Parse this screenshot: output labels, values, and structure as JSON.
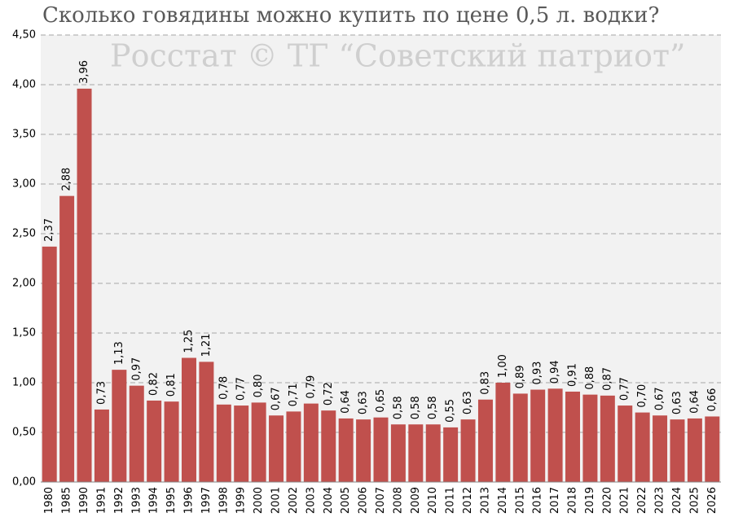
{
  "chart_data": {
    "type": "bar",
    "title": "Сколько говядины можно купить по цене 0,5 л. водки?",
    "subtitle": "Росстат © ТГ “Советский патриот”",
    "categories": [
      "1980",
      "1985",
      "1990",
      "1991",
      "1992",
      "1993",
      "1994",
      "1995",
      "1996",
      "1997",
      "1998",
      "1999",
      "2000",
      "2001",
      "2002",
      "2003",
      "2004",
      "2005",
      "2006",
      "2007",
      "2008",
      "2009",
      "2010",
      "2011",
      "2012",
      "2013",
      "2014",
      "2015",
      "2016",
      "2017",
      "2018",
      "2019",
      "2020",
      "2021",
      "2022",
      "2023",
      "2024",
      "2025",
      "2026"
    ],
    "values": [
      2.37,
      2.88,
      3.96,
      0.73,
      1.13,
      0.97,
      0.82,
      0.81,
      1.25,
      1.21,
      0.78,
      0.77,
      0.8,
      0.67,
      0.71,
      0.79,
      0.72,
      0.64,
      0.63,
      0.65,
      0.58,
      0.58,
      0.58,
      0.55,
      0.63,
      0.83,
      1.0,
      0.89,
      0.93,
      0.94,
      0.91,
      0.88,
      0.87,
      0.77,
      0.7,
      0.67,
      0.63,
      0.64,
      0.66
    ],
    "value_labels": [
      "2,37",
      "2,88",
      "3,96",
      "0,73",
      "1,13",
      "0,97",
      "0,82",
      "0,81",
      "1,25",
      "1,21",
      "0,78",
      "0,77",
      "0,80",
      "0,67",
      "0,71",
      "0,79",
      "0,72",
      "0,64",
      "0,63",
      "0,65",
      "0,58",
      "0,58",
      "0,58",
      "0,55",
      "0,63",
      "0,83",
      "1,00",
      "0,89",
      "0,93",
      "0,94",
      "0,91",
      "0,88",
      "0,87",
      "0,77",
      "0,70",
      "0,67",
      "0,63",
      "0,64",
      "0,66"
    ],
    "color": "#c0504d",
    "ylim": [
      0,
      4.5
    ],
    "yticks": [
      {
        "value": 0,
        "label": "0,00"
      },
      {
        "value": 0.5,
        "label": "0,50"
      },
      {
        "value": 1,
        "label": "1,00"
      },
      {
        "value": 1.5,
        "label": "1,50"
      },
      {
        "value": 2,
        "label": "2,00"
      },
      {
        "value": 2.5,
        "label": "2,50"
      },
      {
        "value": 3,
        "label": "3,00"
      },
      {
        "value": 3.5,
        "label": "3,50"
      },
      {
        "value": 4,
        "label": "4,00"
      },
      {
        "value": 4.5,
        "label": "4,50"
      }
    ],
    "grid": true
  }
}
